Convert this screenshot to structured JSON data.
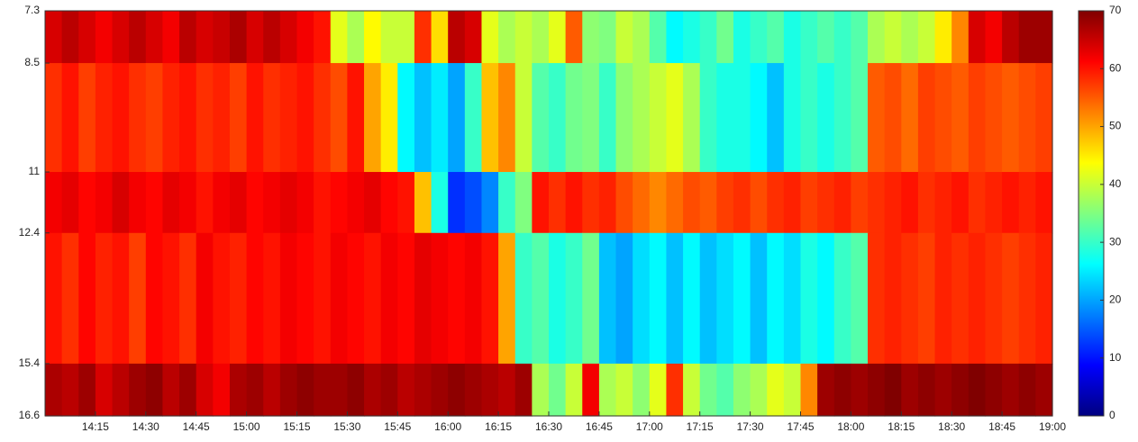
{
  "chart_data": {
    "type": "heatmap",
    "colormap": "jet",
    "x": [
      840,
      845,
      850,
      855,
      860,
      865,
      870,
      875,
      880,
      885,
      890,
      895,
      900,
      905,
      910,
      915,
      920,
      925,
      930,
      935,
      940,
      945,
      950,
      955,
      960,
      965,
      970,
      975,
      980,
      985,
      990,
      995,
      1000,
      1005,
      1010,
      1015,
      1020,
      1025,
      1030,
      1035,
      1040,
      1045,
      1050,
      1055,
      1060,
      1065,
      1070,
      1075,
      1080,
      1085,
      1090,
      1095,
      1100,
      1105,
      1110,
      1115,
      1120,
      1125,
      1130,
      1135
    ],
    "y": [
      7.3,
      8.5,
      11,
      12.4,
      15.4,
      16.6
    ],
    "z": [
      [
        64,
        66,
        64,
        62,
        64,
        66,
        64,
        62,
        66,
        64,
        65,
        67,
        64,
        66,
        64,
        62,
        60,
        42,
        38,
        44,
        40,
        40,
        58,
        46,
        66,
        64,
        42,
        38,
        40,
        38,
        42,
        55,
        36,
        35,
        40,
        38,
        32,
        26,
        28,
        30,
        34,
        28,
        30,
        32,
        28,
        30,
        32,
        30,
        32,
        38,
        40,
        38,
        40,
        45,
        52,
        64,
        62,
        66,
        68,
        68
      ],
      [
        58,
        60,
        57,
        59,
        60,
        58,
        57,
        59,
        60,
        58,
        59,
        57,
        60,
        58,
        59,
        60,
        58,
        56,
        60,
        50,
        45,
        26,
        22,
        25,
        20,
        30,
        48,
        52,
        40,
        32,
        30,
        34,
        35,
        30,
        36,
        38,
        40,
        42,
        38,
        30,
        28,
        28,
        26,
        22,
        28,
        30,
        28,
        30,
        32,
        55,
        56,
        54,
        57,
        56,
        55,
        57,
        56,
        55,
        56,
        57
      ],
      [
        62,
        63,
        61,
        62,
        64,
        62,
        61,
        63,
        62,
        60,
        62,
        63,
        61,
        62,
        63,
        62,
        60,
        61,
        62,
        63,
        61,
        60,
        48,
        28,
        12,
        14,
        18,
        30,
        35,
        60,
        58,
        60,
        58,
        59,
        56,
        54,
        52,
        54,
        56,
        55,
        57,
        58,
        56,
        58,
        59,
        57,
        58,
        59,
        57,
        58,
        59,
        60,
        58,
        59,
        60,
        58,
        59,
        60,
        59,
        60
      ],
      [
        60,
        58,
        61,
        59,
        60,
        57,
        61,
        60,
        58,
        62,
        60,
        59,
        61,
        60,
        62,
        61,
        60,
        62,
        61,
        60,
        62,
        61,
        63,
        62,
        61,
        62,
        60,
        50,
        30,
        32,
        28,
        30,
        34,
        22,
        20,
        24,
        26,
        22,
        26,
        22,
        24,
        26,
        22,
        26,
        24,
        28,
        26,
        30,
        32,
        58,
        59,
        58,
        57,
        59,
        58,
        59,
        58,
        57,
        58,
        59
      ],
      [
        67,
        66,
        68,
        64,
        66,
        68,
        69,
        66,
        68,
        64,
        62,
        67,
        68,
        66,
        68,
        69,
        68,
        68,
        69,
        67,
        68,
        66,
        67,
        68,
        69,
        68,
        67,
        66,
        68,
        38,
        34,
        40,
        62,
        38,
        40,
        36,
        42,
        58,
        40,
        34,
        32,
        36,
        38,
        42,
        40,
        52,
        68,
        69,
        68,
        69,
        70,
        68,
        69,
        68,
        69,
        70,
        69,
        68,
        69,
        68
      ]
    ],
    "xlim": [
      840,
      1140
    ],
    "xticks": [
      {
        "value": 855,
        "label": "14:15"
      },
      {
        "value": 870,
        "label": "14:30"
      },
      {
        "value": 885,
        "label": "14:45"
      },
      {
        "value": 900,
        "label": "15:00"
      },
      {
        "value": 915,
        "label": "15:15"
      },
      {
        "value": 930,
        "label": "15:30"
      },
      {
        "value": 945,
        "label": "15:45"
      },
      {
        "value": 960,
        "label": "16:00"
      },
      {
        "value": 975,
        "label": "16:15"
      },
      {
        "value": 990,
        "label": "16:30"
      },
      {
        "value": 1005,
        "label": "16:45"
      },
      {
        "value": 1020,
        "label": "17:00"
      },
      {
        "value": 1035,
        "label": "17:15"
      },
      {
        "value": 1050,
        "label": "17:30"
      },
      {
        "value": 1065,
        "label": "17:45"
      },
      {
        "value": 1080,
        "label": "18:00"
      },
      {
        "value": 1095,
        "label": "18:15"
      },
      {
        "value": 1110,
        "label": "18:30"
      },
      {
        "value": 1125,
        "label": "18:45"
      },
      {
        "value": 1140,
        "label": "19:00"
      }
    ],
    "ylim": [
      7.3,
      16.6
    ],
    "yticks": [
      7.3,
      8.5,
      11,
      12.4,
      15.4,
      16.6
    ],
    "zlim": [
      0,
      70
    ],
    "zticks": [
      0,
      10,
      20,
      30,
      40,
      50,
      60,
      70
    ]
  }
}
